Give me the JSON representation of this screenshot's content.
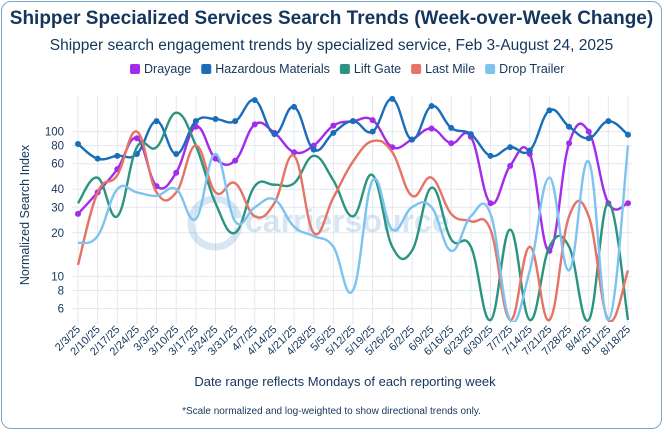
{
  "chart_data": {
    "type": "line",
    "title": "Shipper Specialized Services Search Trends (Week-over-Week Change)",
    "subtitle": "Shipper search engagement trends by specialized service, Feb 3-August 24, 2025",
    "xlabel": "Date range reflects Mondays of each reporting week",
    "ylabel": "Normalized Search Index",
    "footnote": "*Scale normalized and log-weighted to show directional trends only.",
    "watermark": "carriersource",
    "y_scale": "log",
    "ylim": [
      5,
      160
    ],
    "y_ticks": [
      6,
      8,
      10,
      20,
      30,
      40,
      60,
      80,
      100
    ],
    "grid": true,
    "legend_position": "top-right",
    "categories": [
      "2/3/25",
      "2/10/25",
      "2/17/25",
      "2/24/25",
      "3/3/25",
      "3/10/25",
      "3/17/25",
      "3/24/25",
      "3/31/25",
      "4/7/25",
      "4/14/25",
      "4/21/25",
      "4/28/25",
      "5/5/25",
      "5/12/25",
      "5/19/25",
      "5/26/25",
      "6/2/25",
      "6/9/25",
      "6/16/25",
      "6/23/25",
      "6/30/25",
      "7/7/25",
      "7/14/25",
      "7/21/25",
      "7/28/25",
      "8/4/25",
      "8/11/25",
      "8/18/25"
    ],
    "series": [
      {
        "name": "Drayage",
        "color": "#a22bec",
        "values": [
          27,
          38,
          55,
          90,
          42,
          52,
          108,
          65,
          63,
          112,
          98,
          72,
          80,
          110,
          118,
          120,
          78,
          88,
          105,
          83,
          92,
          32,
          58,
          70,
          15,
          83,
          100,
          32,
          32
        ]
      },
      {
        "name": "Hazardous Materials",
        "color": "#1a6db8",
        "values": [
          82,
          65,
          68,
          70,
          118,
          70,
          118,
          122,
          118,
          165,
          96,
          148,
          75,
          98,
          118,
          100,
          168,
          88,
          150,
          106,
          96,
          68,
          78,
          74,
          140,
          108,
          90,
          118,
          95
        ]
      },
      {
        "name": "Lift Gate",
        "color": "#2b9480",
        "values": [
          32,
          48,
          26,
          78,
          78,
          135,
          80,
          32,
          20,
          42,
          43,
          44,
          68,
          46,
          26,
          50,
          16,
          15,
          41,
          18,
          16,
          5,
          21,
          5,
          16,
          16,
          5,
          32,
          5
        ]
      },
      {
        "name": "Last Mile",
        "color": "#e57366",
        "values": [
          12,
          38,
          50,
          100,
          38,
          38,
          80,
          38,
          44,
          26,
          32,
          68,
          20,
          35,
          62,
          86,
          72,
          36,
          48,
          27,
          24,
          21,
          5,
          16,
          5,
          26,
          26,
          5,
          11
        ]
      },
      {
        "name": "Drop Trailer",
        "color": "#7dc3ef",
        "values": [
          17,
          19,
          40,
          38,
          36,
          40,
          25,
          70,
          24,
          30,
          34,
          22,
          19,
          16,
          8,
          46,
          21,
          30,
          30,
          15,
          26,
          27,
          5,
          11,
          48,
          11,
          62,
          5,
          80
        ]
      }
    ]
  }
}
